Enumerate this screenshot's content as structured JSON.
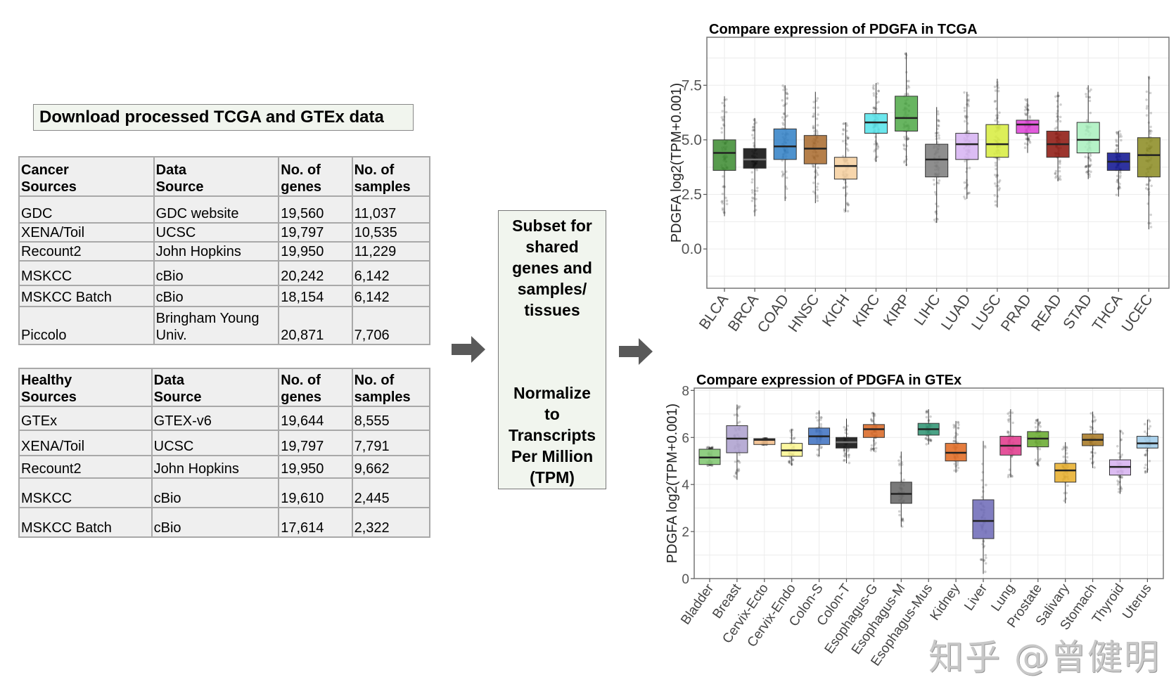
{
  "header": {
    "title": "Download processed TCGA and GTEx data"
  },
  "cancer_table": {
    "headers": [
      "Cancer\nSources",
      "Data\nSource",
      "No. of\ngenes",
      "No. of\nsamples"
    ],
    "header_lines": [
      [
        "Cancer",
        "Sources"
      ],
      [
        "Data",
        "Source"
      ],
      [
        "No. of",
        "genes"
      ],
      [
        "No. of",
        "samples"
      ]
    ],
    "rows": [
      [
        "GDC",
        "GDC website",
        "19,560",
        "11,037"
      ],
      [
        "XENA/Toil",
        "UCSC",
        "19,797",
        "10,535"
      ],
      [
        "Recount2",
        "John Hopkins",
        "19,950",
        "11,229"
      ],
      [
        "MSKCC",
        "cBio",
        "20,242",
        "6,142"
      ],
      [
        "MSKCC Batch",
        "cBio",
        "18,154",
        "6,142"
      ],
      [
        "Piccolo",
        "Bringham Young Univ.",
        "20,871",
        "7,706"
      ]
    ],
    "piccolo_source_lines": [
      "Bringham Young",
      "Univ."
    ]
  },
  "healthy_table": {
    "header_lines": [
      [
        "Healthy",
        "Sources"
      ],
      [
        "Data",
        "Source"
      ],
      [
        "No. of",
        "genes"
      ],
      [
        "No. of",
        "samples"
      ]
    ],
    "rows": [
      [
        "GTEx",
        "GTEX-v6",
        "19,644",
        "8,555"
      ],
      [
        "XENA/Toil",
        "UCSC",
        "19,797",
        "7,791"
      ],
      [
        "Recount2",
        "John Hopkins",
        "19,950",
        "9,662"
      ],
      [
        "MSKCC",
        "cBio",
        "19,610",
        "2,445"
      ],
      [
        "MSKCC Batch",
        "cBio",
        "17,614",
        "2,322"
      ]
    ]
  },
  "process": {
    "step1_lines": [
      "Subset for",
      "shared",
      "genes and",
      "samples/",
      "tissues"
    ],
    "step2_lines": [
      "Normalize",
      "to",
      "Transcripts",
      "Per Million",
      "(TPM)"
    ]
  },
  "icons": {
    "arrow_left": "right-arrow-icon",
    "arrow_right": "right-arrow-icon"
  },
  "watermark": "知乎 @曾健明",
  "chart_data": [
    {
      "type": "boxplot",
      "title": "Compare expression of PDGFA in TCGA",
      "xlabel": "",
      "ylabel": "PDGFA log2(TPM+0.001)",
      "ylim": [
        -1.8,
        9.7
      ],
      "yticks": [
        0.0,
        2.5,
        5.0,
        7.5
      ],
      "ytick_labels": [
        "0.0",
        "2.5",
        "5.0",
        "7.5"
      ],
      "grid": true,
      "categories": [
        "BLCA",
        "BRCA",
        "COAD",
        "HNSC",
        "KICH",
        "KIRC",
        "KIRP",
        "LIHC",
        "LUAD",
        "LUSC",
        "PRAD",
        "READ",
        "STAD",
        "THCA",
        "UCEC"
      ],
      "colors": [
        "#3a8a2e",
        "#050505",
        "#2f7fc6",
        "#a8692a",
        "#f6cf9e",
        "#52e3ea",
        "#4ea845",
        "#7a7a7a",
        "#d6b2f2",
        "#d7ec3c",
        "#dd3fd6",
        "#8b1209",
        "#a8f0bd",
        "#0a0f8f",
        "#8a8a1e"
      ],
      "series": [
        {
          "name": "BLCA",
          "whisker_low": 1.5,
          "q1": 3.6,
          "median": 4.4,
          "q3": 5.0,
          "whisker_high": 7.0
        },
        {
          "name": "BRCA",
          "whisker_low": 1.5,
          "q1": 3.7,
          "median": 4.1,
          "q3": 4.6,
          "whisker_high": 6.0
        },
        {
          "name": "COAD",
          "whisker_low": 2.2,
          "q1": 4.1,
          "median": 4.7,
          "q3": 5.5,
          "whisker_high": 7.5
        },
        {
          "name": "HNSC",
          "whisker_low": 2.1,
          "q1": 3.9,
          "median": 4.6,
          "q3": 5.2,
          "whisker_high": 7.2
        },
        {
          "name": "KICH",
          "whisker_low": 1.7,
          "q1": 3.2,
          "median": 3.8,
          "q3": 4.2,
          "whisker_high": 5.8
        },
        {
          "name": "KIRC",
          "whisker_low": 4.0,
          "q1": 5.3,
          "median": 5.8,
          "q3": 6.2,
          "whisker_high": 7.6
        },
        {
          "name": "KIRP",
          "whisker_low": 3.8,
          "q1": 5.4,
          "median": 6.0,
          "q3": 7.0,
          "whisker_high": 9.0
        },
        {
          "name": "LIHC",
          "whisker_low": 1.2,
          "q1": 3.3,
          "median": 4.1,
          "q3": 4.8,
          "whisker_high": 6.5
        },
        {
          "name": "LUAD",
          "whisker_low": 2.3,
          "q1": 4.1,
          "median": 4.8,
          "q3": 5.3,
          "whisker_high": 7.2
        },
        {
          "name": "LUSC",
          "whisker_low": 1.9,
          "q1": 4.2,
          "median": 4.8,
          "q3": 5.7,
          "whisker_high": 7.8
        },
        {
          "name": "PRAD",
          "whisker_low": 4.4,
          "q1": 5.3,
          "median": 5.7,
          "q3": 5.9,
          "whisker_high": 6.9
        },
        {
          "name": "READ",
          "whisker_low": 3.1,
          "q1": 4.2,
          "median": 4.8,
          "q3": 5.4,
          "whisker_high": 7.2
        },
        {
          "name": "STAD",
          "whisker_low": 3.2,
          "q1": 4.4,
          "median": 5.0,
          "q3": 5.8,
          "whisker_high": 7.5
        },
        {
          "name": "THCA",
          "whisker_low": 2.4,
          "q1": 3.6,
          "median": 4.0,
          "q3": 4.4,
          "whisker_high": 5.4
        },
        {
          "name": "UCEC",
          "whisker_low": 0.9,
          "q1": 3.3,
          "median": 4.3,
          "q3": 5.1,
          "whisker_high": 7.9
        }
      ]
    },
    {
      "type": "boxplot",
      "title": "Compare expression of PDGFA in GTEx",
      "xlabel": "",
      "ylabel": "PDGFA log2(TPM+0.001)",
      "ylim": [
        0,
        8.1
      ],
      "yticks": [
        0,
        2,
        4,
        6,
        8
      ],
      "ytick_labels": [
        "0",
        "2",
        "4",
        "6",
        "8"
      ],
      "grid": true,
      "categories": [
        "Bladder",
        "Breast",
        "Cervix-Ecto",
        "Cervix-Endo",
        "Colon-S",
        "Colon-T",
        "Esophagus-G",
        "Esophagus-M",
        "Esophagus-Mus",
        "Kidney",
        "Liver",
        "Lung",
        "Prostate",
        "Salivary",
        "Stomach",
        "Thyroid",
        "Uterus"
      ],
      "colors": [
        "#7cc66c",
        "#ab9fce",
        "#f2bb85",
        "#fbf68e",
        "#3b6fbf",
        "#050505",
        "#d8641e",
        "#616161",
        "#2a9270",
        "#e0661c",
        "#6b67b6",
        "#e0358a",
        "#64a829",
        "#e8ad27",
        "#a6761d",
        "#d6b0f0",
        "#9ecbea"
      ],
      "series": [
        {
          "name": "Bladder",
          "whisker_low": 4.8,
          "q1": 4.85,
          "median": 5.15,
          "q3": 5.5,
          "whisker_high": 5.6
        },
        {
          "name": "Breast",
          "whisker_low": 4.2,
          "q1": 5.35,
          "median": 5.95,
          "q3": 6.5,
          "whisker_high": 7.4
        },
        {
          "name": "Cervix-Ecto",
          "whisker_low": 5.7,
          "q1": 5.7,
          "median": 5.9,
          "q3": 5.95,
          "whisker_high": 5.95
        },
        {
          "name": "Cervix-Endo",
          "whisker_low": 4.8,
          "q1": 5.2,
          "median": 5.45,
          "q3": 5.75,
          "whisker_high": 6.35
        },
        {
          "name": "Colon-S",
          "whisker_low": 5.2,
          "q1": 5.7,
          "median": 6.05,
          "q3": 6.4,
          "whisker_high": 7.15
        },
        {
          "name": "Colon-T",
          "whisker_low": 4.9,
          "q1": 5.55,
          "median": 5.8,
          "q3": 6.0,
          "whisker_high": 6.8
        },
        {
          "name": "Esophagus-G",
          "whisker_low": 5.4,
          "q1": 6.0,
          "median": 6.35,
          "q3": 6.55,
          "whisker_high": 7.05
        },
        {
          "name": "Esophagus-M",
          "whisker_low": 2.2,
          "q1": 3.2,
          "median": 3.6,
          "q3": 4.1,
          "whisker_high": 5.4
        },
        {
          "name": "Esophagus-Mus",
          "whisker_low": 5.7,
          "q1": 6.1,
          "median": 6.35,
          "q3": 6.6,
          "whisker_high": 7.2
        },
        {
          "name": "Kidney",
          "whisker_low": 4.5,
          "q1": 5.0,
          "median": 5.35,
          "q3": 5.75,
          "whisker_high": 6.7
        },
        {
          "name": "Liver",
          "whisker_low": 0.2,
          "q1": 1.7,
          "median": 2.45,
          "q3": 3.35,
          "whisker_high": 5.85
        },
        {
          "name": "Lung",
          "whisker_low": 4.3,
          "q1": 5.25,
          "median": 5.65,
          "q3": 6.05,
          "whisker_high": 7.2
        },
        {
          "name": "Prostate",
          "whisker_low": 4.8,
          "q1": 5.6,
          "median": 5.95,
          "q3": 6.25,
          "whisker_high": 6.8
        },
        {
          "name": "Salivary",
          "whisker_low": 3.2,
          "q1": 4.1,
          "median": 4.6,
          "q3": 4.9,
          "whisker_high": 5.8
        },
        {
          "name": "Stomach",
          "whisker_low": 4.7,
          "q1": 5.65,
          "median": 5.9,
          "q3": 6.15,
          "whisker_high": 7.1
        },
        {
          "name": "Thyroid",
          "whisker_low": 3.6,
          "q1": 4.4,
          "median": 4.75,
          "q3": 5.05,
          "whisker_high": 6.3
        },
        {
          "name": "Uterus",
          "whisker_low": 4.5,
          "q1": 5.55,
          "median": 5.75,
          "q3": 6.05,
          "whisker_high": 6.75
        }
      ]
    }
  ]
}
